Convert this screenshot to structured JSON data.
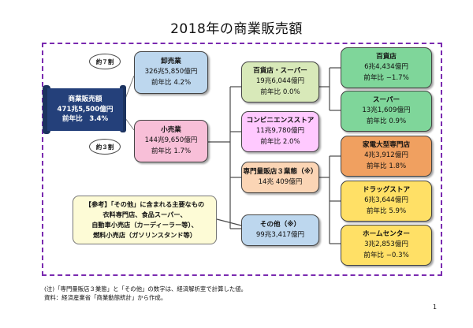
{
  "title": "2018年の商業販売額",
  "total": {
    "name": "商業販売額",
    "value": "471兆5,500億円",
    "yoy": "前年比　3.4%"
  },
  "share_labels": {
    "wholesale": "約７割",
    "retail": "約３割"
  },
  "wholesale": {
    "name": "卸売業",
    "value": "326兆5,850億円",
    "yoy": "前年比 4.2%"
  },
  "retail": {
    "name": "小売業",
    "value": "144兆9,650億円",
    "yoy": "前年比 1.7%"
  },
  "mid": [
    {
      "name": "百貨店・スーパー",
      "value": "19兆6,044億円",
      "yoy": "前年比 0.0%"
    },
    {
      "name": "コンビニエンスストア",
      "value": "11兆9,780億円",
      "yoy": "前年比 2.0%"
    },
    {
      "name": "専門量販店３業態（※）",
      "value": "14兆 409億円",
      "yoy": ""
    },
    {
      "name": "その他（※）",
      "value": "99兆3,417億円",
      "yoy": ""
    }
  ],
  "right": [
    {
      "name": "百貨店",
      "value": "6兆4,434億円",
      "yoy": "前年比 −1.7%"
    },
    {
      "name": "スーパー",
      "value": "13兆1,609億円",
      "yoy": "前年比 0.9%"
    },
    {
      "name": "家電大型専門店",
      "value": "4兆3,912億円",
      "yoy": "前年比 1.8%"
    },
    {
      "name": "ドラッグストア",
      "value": "6兆3,644億円",
      "yoy": "前年比 5.9%"
    },
    {
      "name": "ホームセンター",
      "value": "3兆2,853億円",
      "yoy": "前年比 −0.3%"
    }
  ],
  "reference": {
    "line1": "【参考】「その他」に含まれる主要なもの",
    "line2": "衣料専門店、食品スーパー、",
    "line3": "自動車小売店（カーディーラー等）、",
    "line4": "燃料小売店（ガソリンスタンド等）"
  },
  "notes": {
    "line1": "(注)「専門量販店３業態」と「その他」の数字は、経済解析室で計算した値。",
    "line2": "資料：経済産業省「商業動態統計」から作成。"
  },
  "page_number": "1",
  "colors": {
    "blue": "#bdd7ee",
    "pink": "#f8bfd8",
    "green_light": "#d8e9b9",
    "magenta": "#ffc9ff",
    "orange_light": "#fbd5b5",
    "green": "#7fd69a",
    "orange": "#f0a060",
    "yellow": "#ffe066",
    "navy": "#24407a"
  }
}
